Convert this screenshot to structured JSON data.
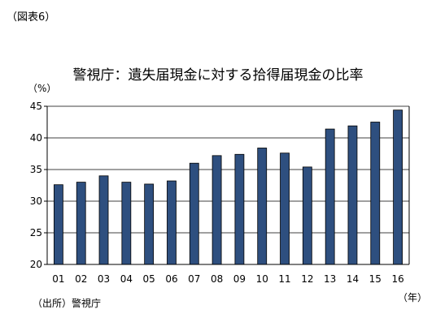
{
  "figure_label": "（図表6）",
  "source_label": "（出所）警視庁",
  "chart_data": {
    "type": "bar",
    "title": "警視庁：遺失届現金に対する拾得届現金の比率",
    "ylabel": "（%）",
    "xlabel": "（年）",
    "ylim": [
      20,
      45
    ],
    "yticks": [
      20,
      25,
      30,
      35,
      40,
      45
    ],
    "grid": true,
    "categories": [
      "01",
      "02",
      "03",
      "04",
      "05",
      "06",
      "07",
      "08",
      "09",
      "10",
      "11",
      "12",
      "13",
      "14",
      "15",
      "16"
    ],
    "values": [
      32.6,
      33.0,
      34.0,
      33.0,
      32.7,
      33.2,
      36.0,
      37.2,
      37.4,
      38.4,
      37.6,
      35.4,
      41.4,
      41.9,
      42.5,
      44.4
    ],
    "bar_color": "#2e4f7f"
  }
}
